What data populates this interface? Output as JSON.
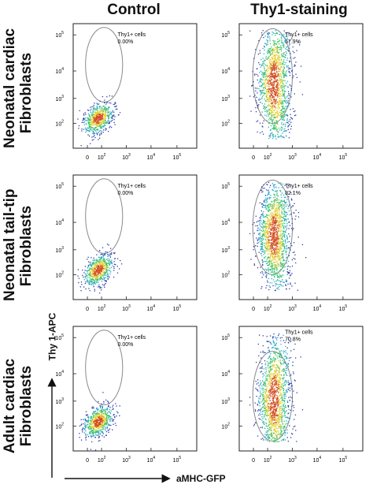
{
  "columns": [
    "Control",
    "Thy1-staining"
  ],
  "rows": [
    {
      "line1": "Neonatal cardiac",
      "line2": "Fibroblasts"
    },
    {
      "line1": "Neonatal tail-tip",
      "line2": "Fibroblasts"
    },
    {
      "line1": "Adult cardiac",
      "line2": "Fibroblasts"
    }
  ],
  "axes": {
    "y": "Thy 1-APC",
    "x": "aMHC-GFP"
  },
  "gate_label": "Thy1+ cells",
  "chart_data": {
    "type": "scatter",
    "xlabel": "aMHC-GFP",
    "ylabel": "Thy 1-APC",
    "scale": "log",
    "x_ticks": [
      "0",
      "10^2",
      "10^3",
      "10^4",
      "10^5"
    ],
    "y_ticks": [
      "10^2",
      "10^3",
      "10^4",
      "10^5"
    ],
    "panels": [
      {
        "row": "Neonatal cardiac Fibroblasts",
        "column": "Control",
        "gate": "Thy1+ cells",
        "percent": "0.00%"
      },
      {
        "row": "Neonatal cardiac Fibroblasts",
        "column": "Thy1-staining",
        "gate": "Thy1+ cells",
        "percent": "67.9%"
      },
      {
        "row": "Neonatal tail-tip Fibroblasts",
        "column": "Control",
        "gate": "Thy1+ cells",
        "percent": "0.00%"
      },
      {
        "row": "Neonatal tail-tip Fibroblasts",
        "column": "Thy1-staining",
        "gate": "Thy1+ cells",
        "percent": "82.1%"
      },
      {
        "row": "Adult cardiac Fibroblasts",
        "column": "Control",
        "gate": "Thy1+ cells",
        "percent": "0.00%"
      },
      {
        "row": "Adult cardiac Fibroblasts",
        "column": "Thy1-staining",
        "gate": "Thy1+ cells",
        "percent": "70.8%"
      }
    ]
  }
}
